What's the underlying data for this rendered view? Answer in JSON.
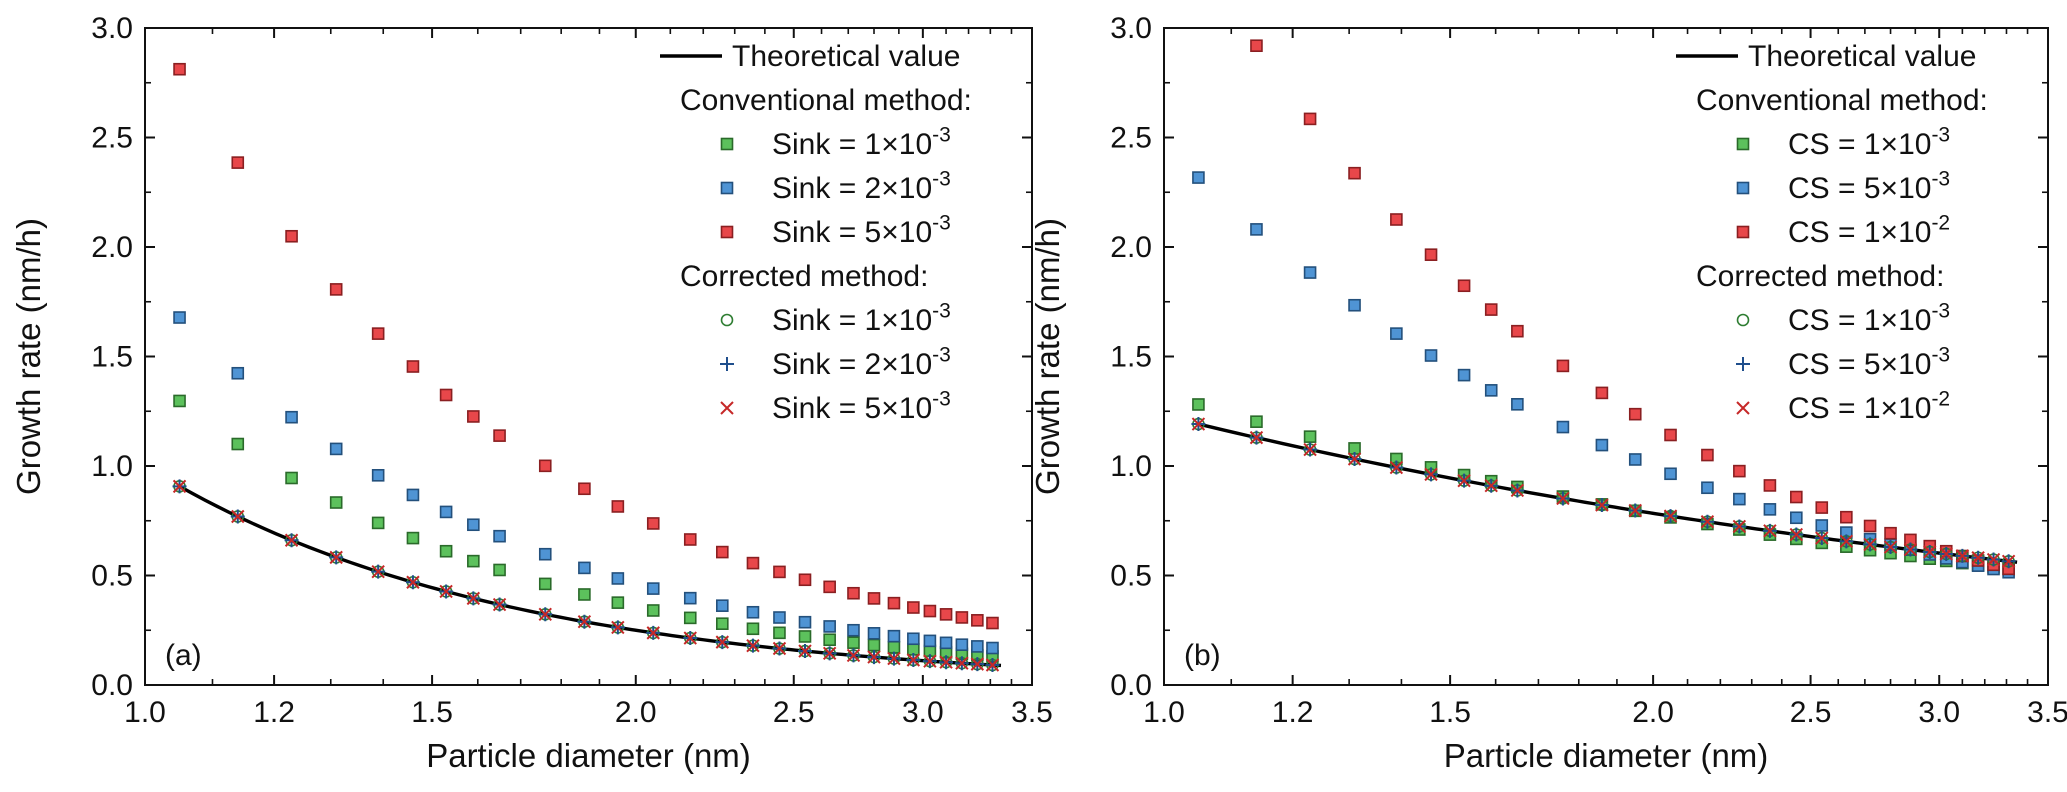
{
  "chart_data": [
    {
      "type": "scatter",
      "panel_label": "(a)",
      "xlabel": "Particle diameter (nm)",
      "ylabel": "Growth rate (nm/h)",
      "xscale": "log",
      "xlim": [
        1.0,
        3.5
      ],
      "ylim": [
        0.0,
        3.0
      ],
      "xticks": [
        1.0,
        1.2,
        1.5,
        2.0,
        2.5,
        3.0,
        3.5
      ],
      "xtick_labels": [
        "1.0",
        "1.2",
        "1.5",
        "2.0",
        "2.5",
        "3.0",
        "3.5"
      ],
      "yticks": [
        0.0,
        0.5,
        1.0,
        1.5,
        2.0,
        2.5,
        3.0
      ],
      "ytick_labels": [
        "0.0",
        "0.5",
        "1.0",
        "1.5",
        "2.0",
        "2.5",
        "3.0"
      ],
      "legend_position": "top-right",
      "headers": {
        "conventional": "Conventional method:",
        "corrected": "Corrected method:"
      },
      "line_series": {
        "name": "Theoretical value",
        "color": "#000000",
        "x_start": 1.05,
        "x_end": 3.35,
        "coef": 1.0,
        "exponent": -2.0
      },
      "x": [
        1.05,
        1.14,
        1.23,
        1.31,
        1.39,
        1.46,
        1.53,
        1.59,
        1.65,
        1.76,
        1.86,
        1.95,
        2.05,
        2.16,
        2.26,
        2.36,
        2.45,
        2.54,
        2.63,
        2.72,
        2.8,
        2.88,
        2.96,
        3.03,
        3.1,
        3.17,
        3.24,
        3.31
      ],
      "series": [
        {
          "name": "Sink = 1×10⁻³",
          "group": "conventional",
          "marker": "square",
          "color": "#5cc15c",
          "stroke": "#2a6a2a",
          "coef": 1.43,
          "exponent": -2.0
        },
        {
          "name": "Sink = 2×10⁻³",
          "group": "conventional",
          "marker": "square",
          "color": "#4f94d4",
          "stroke": "#23507c",
          "coef": 1.85,
          "exponent": -2.0
        },
        {
          "name": "Sink = 5×10⁻³",
          "group": "conventional",
          "marker": "square",
          "color": "#e8474a",
          "stroke": "#8a1f21",
          "coef": 3.1,
          "exponent": -2.0
        },
        {
          "name": "Sink = 1×10⁻³",
          "group": "corrected",
          "marker": "circle",
          "color": "#2e7d32",
          "coef": 1.0,
          "exponent": -2.0
        },
        {
          "name": "Sink = 2×10⁻³",
          "group": "corrected",
          "marker": "plus",
          "color": "#1f4e8c",
          "coef": 1.0,
          "exponent": -2.0
        },
        {
          "name": "Sink = 5×10⁻³",
          "group": "corrected",
          "marker": "cross",
          "color": "#c62828",
          "coef": 1.0,
          "exponent": -2.0
        }
      ]
    },
    {
      "type": "scatter",
      "panel_label": "(b)",
      "xlabel": "Particle diameter (nm)",
      "ylabel": "Growth rate (nm/h)",
      "xscale": "log",
      "xlim": [
        1.0,
        3.5
      ],
      "ylim": [
        0.0,
        3.0
      ],
      "xticks": [
        1.0,
        1.2,
        1.5,
        2.0,
        2.5,
        3.0,
        3.5
      ],
      "xtick_labels": [
        "1.0",
        "1.2",
        "1.5",
        "2.0",
        "2.5",
        "3.0",
        "3.5"
      ],
      "yticks": [
        0.0,
        0.5,
        1.0,
        1.5,
        2.0,
        2.5,
        3.0
      ],
      "ytick_labels": [
        "0.0",
        "0.5",
        "1.0",
        "1.5",
        "2.0",
        "2.5",
        "3.0"
      ],
      "legend_position": "top-right",
      "headers": {
        "conventional": "Conventional method:",
        "corrected": "Corrected method:"
      },
      "line_series": {
        "name": "Theoretical value",
        "color": "#000000",
        "x_start": 1.05,
        "x_end": 3.35,
        "coef": 1.23,
        "exponent": -0.65
      },
      "x": [
        1.05,
        1.14,
        1.23,
        1.31,
        1.39,
        1.46,
        1.53,
        1.59,
        1.65,
        1.76,
        1.86,
        1.95,
        2.05,
        2.16,
        2.26,
        2.36,
        2.45,
        2.54,
        2.63,
        2.72,
        2.8,
        2.88,
        2.96,
        3.03,
        3.1,
        3.17,
        3.24,
        3.31
      ],
      "series": [
        {
          "name": "CS = 1×10⁻³",
          "group": "conventional",
          "marker": "square",
          "color": "#5cc15c",
          "stroke": "#2a6a2a",
          "coef": 1.33,
          "exponent": -0.77
        },
        {
          "name": "CS = 5×10⁻³",
          "group": "conventional",
          "marker": "square",
          "color": "#4f94d4",
          "stroke": "#23507c",
          "coef": 2.47,
          "exponent": -1.31
        },
        {
          "name": "CS = 1×10⁻²",
          "group": "conventional",
          "marker": "square",
          "color": "#e8474a",
          "stroke": "#8a1f21",
          "coef": 3.6,
          "exponent": -1.6
        },
        {
          "name": "CS = 1×10⁻³",
          "group": "corrected",
          "marker": "circle",
          "color": "#2e7d32",
          "coef": 1.23,
          "exponent": -0.65
        },
        {
          "name": "CS = 5×10⁻³",
          "group": "corrected",
          "marker": "plus",
          "color": "#1f4e8c",
          "coef": 1.23,
          "exponent": -0.65
        },
        {
          "name": "CS = 1×10⁻²",
          "group": "corrected",
          "marker": "cross",
          "color": "#c62828",
          "coef": 1.23,
          "exponent": -0.65
        }
      ]
    }
  ]
}
